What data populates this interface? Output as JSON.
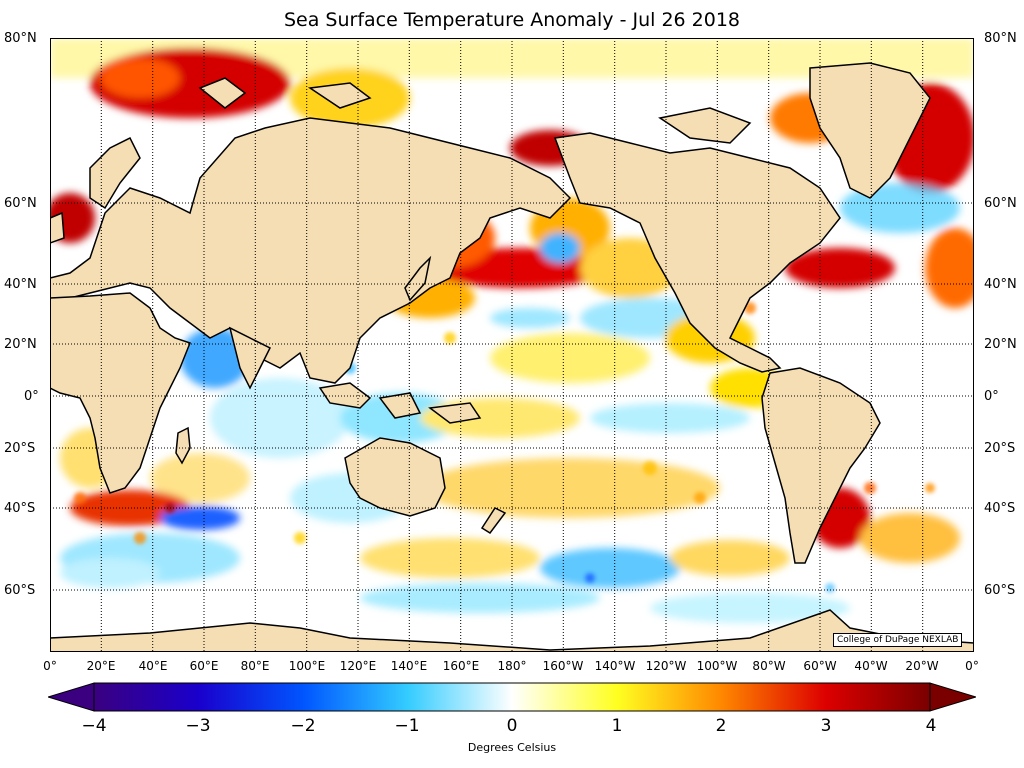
{
  "title": "Sea Surface Temperature Anomaly - Jul 26 2018",
  "credit": "College of DuPage NEXLAB",
  "colorbar": {
    "label": "Degrees Celsius",
    "ticks": [
      "−4",
      "−3",
      "−2",
      "−1",
      "0",
      "1",
      "2",
      "3",
      "4"
    ],
    "range": [
      -4,
      4
    ],
    "colors": [
      "#3a007f",
      "#0033ff",
      "#33ccff",
      "#ffffff",
      "#ffff33",
      "#ff8800",
      "#cc0000",
      "#7a0000"
    ]
  },
  "lat_labels": [
    "80°N",
    "60°N",
    "40°N",
    "20°N",
    "0°",
    "20°S",
    "40°S",
    "60°S"
  ],
  "lon_labels": [
    "0°",
    "20°E",
    "40°E",
    "60°E",
    "80°E",
    "100°E",
    "120°E",
    "140°E",
    "160°E",
    "180°",
    "160°W",
    "140°W",
    "120°W",
    "100°W",
    "80°W",
    "60°W",
    "40°W",
    "20°W",
    "0°"
  ],
  "land_color": "#f5deb3"
}
